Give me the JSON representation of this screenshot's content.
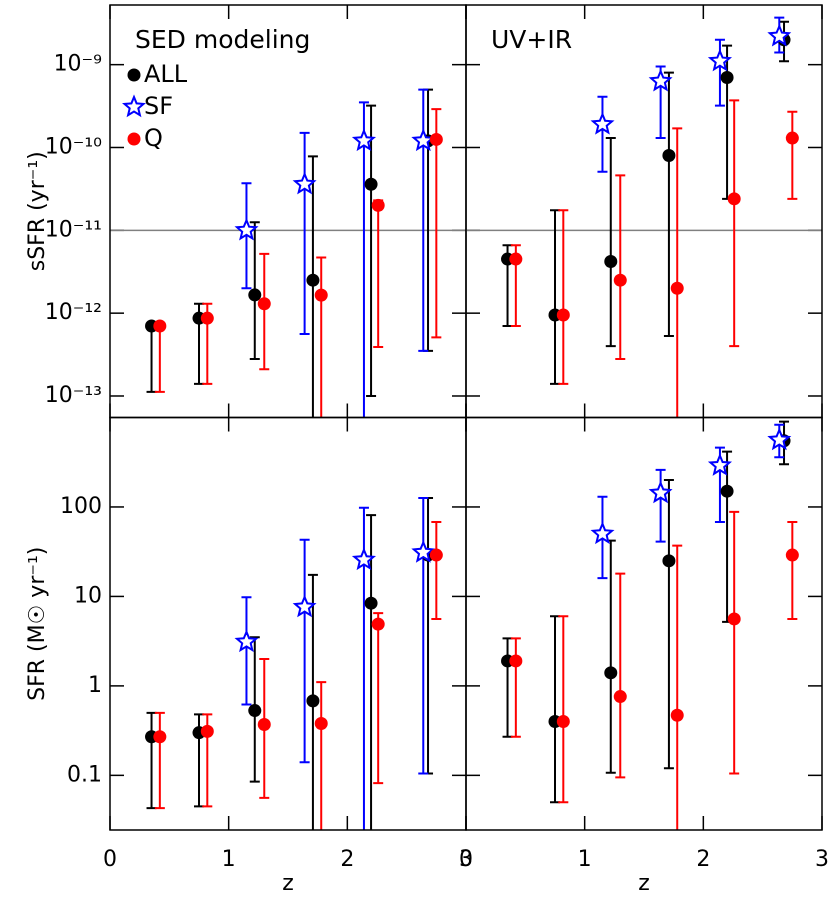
{
  "chart_data": [
    {
      "type": "scatter",
      "title": "SED modeling",
      "ylabel": "sSFR (yr⁻¹)",
      "log_y": true,
      "xlim": [
        0,
        3
      ],
      "xticks": [
        0,
        1,
        2,
        3
      ],
      "xtick_labels": false,
      "ylim": [
        5.5e-14,
        5.25e-09
      ],
      "ytick_labels": true,
      "yticks": [
        {
          "value": 1e-13,
          "label": "10⁻¹³"
        },
        {
          "value": 1e-12,
          "label": "10⁻¹²"
        },
        {
          "value": 1e-11,
          "label": "10⁻¹¹"
        },
        {
          "value": 1e-10,
          "label": "10⁻¹⁰"
        },
        {
          "value": 1e-09,
          "label": "10⁻⁹"
        }
      ],
      "hline": 1e-11,
      "hline_color": "#808080",
      "legend": "upper left",
      "series": [
        {
          "name": "ALL",
          "color": "#000000",
          "marker": "circle",
          "x": [
            0.35,
            0.75,
            1.22,
            1.71,
            2.2,
            2.68
          ],
          "values": [
            7e-13,
            8.7e-13,
            1.66e-12,
            2.5e-12,
            3.6e-11,
            1.2e-10
          ],
          "lower": [
            1.12e-13,
            1.4e-13,
            2.8e-13,
            5e-14,
            1e-13,
            3.5e-13
          ],
          "upper": [
            7e-13,
            1.3e-12,
            1.25e-11,
            7.8e-11,
            3.2e-10,
            5e-10
          ]
        },
        {
          "name": "SF",
          "color": "#0000ff",
          "marker": "star",
          "x": [
            1.15,
            1.64,
            2.14,
            2.64
          ],
          "values": [
            1e-11,
            3.6e-11,
            1.2e-10,
            1.2e-10
          ],
          "lower": [
            2e-12,
            5.6e-13,
            5e-14,
            3.5e-13
          ],
          "upper": [
            3.7e-11,
            1.5e-10,
            3.5e-10,
            5e-10
          ]
        },
        {
          "name": "Q",
          "color": "#ff0000",
          "marker": "circle",
          "x": [
            0.42,
            0.82,
            1.3,
            1.78,
            2.26,
            2.75
          ],
          "values": [
            7e-13,
            8.7e-13,
            1.3e-12,
            1.65e-12,
            2e-11,
            1.25e-10
          ],
          "lower": [
            1.12e-13,
            1.4e-13,
            2.1e-13,
            5e-14,
            3.9e-13,
            5.1e-13
          ],
          "upper": [
            7e-13,
            1.3e-12,
            5.2e-12,
            4.7e-12,
            2.3e-11,
            2.9e-10
          ]
        }
      ]
    },
    {
      "type": "scatter",
      "title": "UV+IR",
      "log_y": true,
      "xlim": [
        0,
        3
      ],
      "xticks": [
        0,
        1,
        2,
        3
      ],
      "xtick_labels": false,
      "ylim": [
        5.5e-14,
        5.25e-09
      ],
      "yticks": [
        1e-13,
        1e-12,
        1e-11,
        1e-10,
        1e-09
      ],
      "ytick_labels": false,
      "hline": 1e-11,
      "hline_color": "#808080",
      "series": [
        {
          "color": "#000000",
          "marker": "circle",
          "x": [
            0.35,
            0.75,
            1.22,
            1.71,
            2.2,
            2.68
          ],
          "values": [
            4.5e-12,
            9.5e-13,
            4.2e-12,
            8e-11,
            7e-10,
            2e-09
          ],
          "lower": [
            7e-13,
            1.4e-13,
            4e-13,
            5.3e-13,
            2.4e-11,
            1.1e-09
          ],
          "upper": [
            6.6e-12,
            1.75e-11,
            1.3e-10,
            8e-10,
            1.7e-09,
            3.3e-09
          ]
        },
        {
          "color": "#0000ff",
          "marker": "star",
          "x": [
            1.15,
            1.64,
            2.14,
            2.64
          ],
          "values": [
            1.9e-10,
            6.3e-10,
            1.1e-09,
            2.2e-09
          ],
          "lower": [
            5.1e-11,
            1.3e-10,
            3.2e-10,
            1.4e-09
          ],
          "upper": [
            4.1e-10,
            9.5e-10,
            2e-09,
            3.7e-09
          ]
        },
        {
          "color": "#ff0000",
          "marker": "circle",
          "x": [
            0.42,
            0.82,
            1.3,
            1.78,
            2.26,
            2.75
          ],
          "values": [
            4.5e-12,
            9.5e-13,
            2.5e-12,
            2e-12,
            2.4e-11,
            1.3e-10
          ],
          "lower": [
            7e-13,
            1.4e-13,
            2.8e-13,
            5e-14,
            4e-13,
            2.4e-11
          ],
          "upper": [
            6.6e-12,
            1.75e-11,
            4.6e-11,
            1.7e-10,
            3.7e-10,
            2.7e-10
          ]
        }
      ]
    },
    {
      "type": "scatter",
      "ylabel": "SFR (M☉ yr⁻¹)",
      "xlabel": "z",
      "log_y": true,
      "xlim": [
        0,
        3
      ],
      "xticks": [
        0,
        1,
        2,
        3
      ],
      "xtick_labels": true,
      "ylim": [
        0.0245,
        1000
      ],
      "yticks": [
        0.1,
        1,
        10,
        100
      ],
      "ytick_labels": true,
      "series": [
        {
          "color": "#000000",
          "marker": "circle",
          "x": [
            0.35,
            0.75,
            1.22,
            1.71,
            2.2,
            2.68
          ],
          "values": [
            0.27,
            0.3,
            0.53,
            0.68,
            8.4,
            29
          ],
          "lower": [
            0.043,
            0.045,
            0.085,
            0.02,
            0.02,
            0.105
          ],
          "upper": [
            0.5,
            0.48,
            3.5,
            17.4,
            81,
            126
          ]
        },
        {
          "color": "#0000ff",
          "marker": "star",
          "x": [
            1.15,
            1.64,
            2.14,
            2.64
          ],
          "values": [
            3.1,
            7.6,
            25.6,
            31
          ],
          "lower": [
            0.62,
            0.14,
            0.02,
            0.105
          ],
          "upper": [
            9.8,
            43,
            98,
            126
          ]
        },
        {
          "color": "#ff0000",
          "marker": "circle",
          "x": [
            0.42,
            0.82,
            1.3,
            1.78,
            2.26,
            2.75
          ],
          "values": [
            0.27,
            0.31,
            0.37,
            0.38,
            4.9,
            29
          ],
          "lower": [
            0.043,
            0.045,
            0.056,
            0.02,
            0.082,
            5.6
          ],
          "upper": [
            0.5,
            0.48,
            2.0,
            1.1,
            6.5,
            68
          ]
        }
      ]
    },
    {
      "type": "scatter",
      "xlabel": "z",
      "log_y": true,
      "xlim": [
        0,
        3
      ],
      "xticks": [
        0,
        1,
        2,
        3
      ],
      "xtick_labels": true,
      "ylim": [
        0.0245,
        1000
      ],
      "yticks": [
        0.1,
        1,
        10,
        100
      ],
      "ytick_labels": false,
      "series": [
        {
          "color": "#000000",
          "marker": "circle",
          "x": [
            0.35,
            0.75,
            1.22,
            1.71,
            2.2,
            2.68
          ],
          "values": [
            1.9,
            0.4,
            1.4,
            25,
            150,
            550
          ],
          "lower": [
            0.27,
            0.05,
            0.107,
            0.12,
            5.2,
            300
          ],
          "upper": [
            3.4,
            6.0,
            42,
            200,
            415,
            900
          ]
        },
        {
          "color": "#0000ff",
          "marker": "star",
          "x": [
            1.15,
            1.64,
            2.14,
            2.64
          ],
          "values": [
            50,
            143,
            290,
            560
          ],
          "lower": [
            16,
            41,
            68,
            360
          ],
          "upper": [
            130,
            260,
            460,
            830
          ]
        },
        {
          "color": "#ff0000",
          "marker": "circle",
          "x": [
            0.42,
            0.82,
            1.3,
            1.78,
            2.26,
            2.75
          ],
          "values": [
            1.9,
            0.4,
            0.76,
            0.47,
            5.6,
            29
          ],
          "lower": [
            0.27,
            0.05,
            0.095,
            0.02,
            0.105,
            5.6
          ],
          "upper": [
            3.4,
            6.0,
            18,
            37,
            88,
            68
          ]
        }
      ]
    }
  ]
}
